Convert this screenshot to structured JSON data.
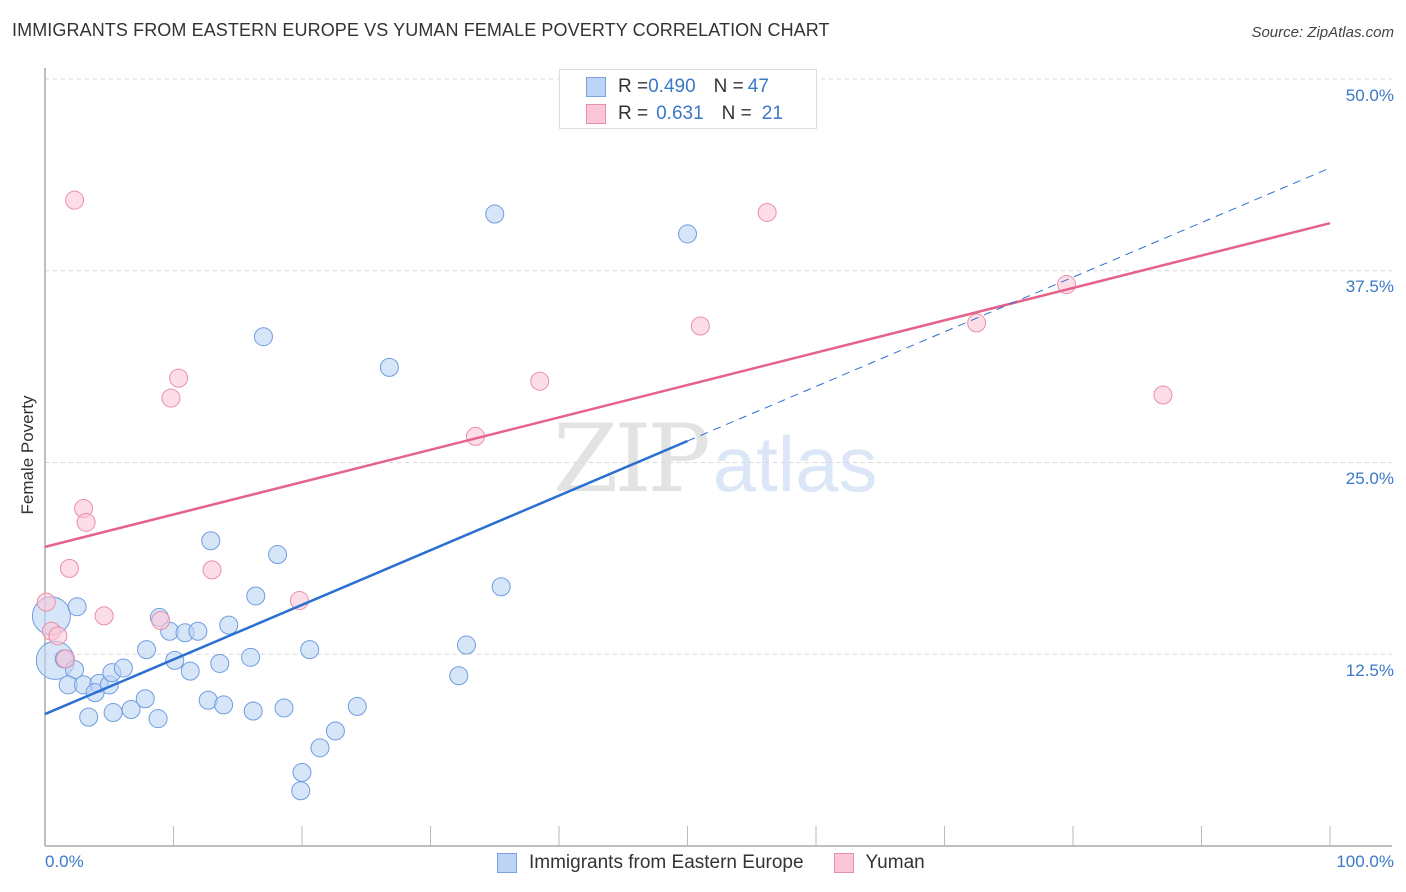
{
  "header": {
    "title": "IMMIGRANTS FROM EASTERN EUROPE VS YUMAN FEMALE POVERTY CORRELATION CHART",
    "source": "Source: ZipAtlas.com"
  },
  "legend_top": {
    "rows": [
      {
        "series": "Immigrants from Eastern Europe",
        "r_label": "R = ",
        "r_value": "0.490",
        "n_label": "N = ",
        "n_value": "47"
      },
      {
        "series": "Yuman",
        "r_label": "R = ",
        "r_value": "0.631",
        "n_label": "N = ",
        "n_value": "21"
      }
    ]
  },
  "legend_bottom": {
    "items": [
      {
        "label": "Immigrants from Eastern Europe"
      },
      {
        "label": "Yuman"
      }
    ]
  },
  "axes": {
    "ylabel": "Female Poverty",
    "yticks": [
      "50.0%",
      "37.5%",
      "25.0%",
      "12.5%"
    ],
    "xticks": [
      "0.0%",
      "100.0%"
    ]
  },
  "watermark": {
    "zip": "ZIP",
    "atlas": "atlas"
  },
  "colors": {
    "blue_fill": "#bcd4f5",
    "blue_stroke": "#6f9de0",
    "blue_line": "#2a6fd1",
    "pink_fill": "#fbc6d5",
    "pink_stroke": "#ea8fab",
    "pink_line": "#e5628b",
    "tick_text": "#3b78c7"
  },
  "chart_data": {
    "type": "scatter",
    "title": "IMMIGRANTS FROM EASTERN EUROPE VS YUMAN FEMALE POVERTY CORRELATION CHART",
    "xlabel": "",
    "ylabel": "Female Poverty",
    "xlim": [
      0,
      100
    ],
    "ylim": [
      0,
      50
    ],
    "x_ticks": [
      "0.0%",
      "100.0%"
    ],
    "y_ticks": [
      "12.5%",
      "25.0%",
      "37.5%",
      "50.0%"
    ],
    "grid": "horizontal dashed",
    "legend_position": "bottom",
    "series": [
      {
        "name": "Immigrants from Eastern Europe",
        "color": "#6f9de0",
        "R": 0.49,
        "N": 47,
        "trendline": {
          "x": [
            0,
            50
          ],
          "y": [
            8.6,
            26.4
          ],
          "dashed_extension": {
            "x": [
              50,
              100
            ],
            "y": [
              26.4,
              44.2
            ]
          }
        },
        "points": [
          {
            "x": 0.5,
            "y": 15.0,
            "size": "large"
          },
          {
            "x": 0.8,
            "y": 12.1,
            "size": "large"
          },
          {
            "x": 2.5,
            "y": 15.6
          },
          {
            "x": 1.5,
            "y": 12.2
          },
          {
            "x": 2.3,
            "y": 11.5
          },
          {
            "x": 1.8,
            "y": 10.5
          },
          {
            "x": 3.0,
            "y": 10.5
          },
          {
            "x": 4.2,
            "y": 10.6
          },
          {
            "x": 3.9,
            "y": 10.0
          },
          {
            "x": 5.0,
            "y": 10.5
          },
          {
            "x": 5.2,
            "y": 11.3
          },
          {
            "x": 6.1,
            "y": 11.6
          },
          {
            "x": 5.3,
            "y": 8.7
          },
          {
            "x": 6.7,
            "y": 8.9
          },
          {
            "x": 7.9,
            "y": 12.8
          },
          {
            "x": 8.9,
            "y": 14.9
          },
          {
            "x": 9.7,
            "y": 14.0
          },
          {
            "x": 10.1,
            "y": 12.1
          },
          {
            "x": 10.9,
            "y": 13.9
          },
          {
            "x": 11.9,
            "y": 14.0
          },
          {
            "x": 11.3,
            "y": 11.4
          },
          {
            "x": 7.8,
            "y": 9.6
          },
          {
            "x": 8.8,
            "y": 8.3
          },
          {
            "x": 12.7,
            "y": 9.5
          },
          {
            "x": 13.6,
            "y": 11.9
          },
          {
            "x": 13.9,
            "y": 9.2
          },
          {
            "x": 14.3,
            "y": 14.4
          },
          {
            "x": 12.9,
            "y": 19.9
          },
          {
            "x": 16.0,
            "y": 12.3
          },
          {
            "x": 16.2,
            "y": 8.8
          },
          {
            "x": 16.4,
            "y": 16.3
          },
          {
            "x": 17.0,
            "y": 33.2
          },
          {
            "x": 18.6,
            "y": 9.0
          },
          {
            "x": 18.1,
            "y": 19.0
          },
          {
            "x": 20.6,
            "y": 12.8
          },
          {
            "x": 21.4,
            "y": 6.4
          },
          {
            "x": 20.0,
            "y": 4.8
          },
          {
            "x": 19.9,
            "y": 3.6
          },
          {
            "x": 24.3,
            "y": 9.1
          },
          {
            "x": 22.6,
            "y": 7.5
          },
          {
            "x": 26.8,
            "y": 31.2
          },
          {
            "x": 32.2,
            "y": 11.1
          },
          {
            "x": 32.8,
            "y": 13.1
          },
          {
            "x": 35.0,
            "y": 41.2
          },
          {
            "x": 35.5,
            "y": 16.9
          },
          {
            "x": 50.0,
            "y": 39.9
          },
          {
            "x": 3.4,
            "y": 8.4
          }
        ]
      },
      {
        "name": "Yuman",
        "color": "#ea8fab",
        "R": 0.631,
        "N": 21,
        "trendline": {
          "x": [
            0,
            100
          ],
          "y": [
            19.5,
            40.6
          ]
        },
        "points": [
          {
            "x": 0.1,
            "y": 15.9
          },
          {
            "x": 0.5,
            "y": 14.0
          },
          {
            "x": 1.0,
            "y": 13.7
          },
          {
            "x": 1.6,
            "y": 12.2
          },
          {
            "x": 1.9,
            "y": 18.1
          },
          {
            "x": 2.3,
            "y": 42.1
          },
          {
            "x": 3.0,
            "y": 22.0
          },
          {
            "x": 3.2,
            "y": 21.1
          },
          {
            "x": 4.6,
            "y": 15.0
          },
          {
            "x": 9.0,
            "y": 14.7
          },
          {
            "x": 9.8,
            "y": 29.2
          },
          {
            "x": 10.4,
            "y": 30.5
          },
          {
            "x": 13.0,
            "y": 18.0
          },
          {
            "x": 19.8,
            "y": 16.0
          },
          {
            "x": 33.5,
            "y": 26.7
          },
          {
            "x": 38.5,
            "y": 30.3
          },
          {
            "x": 51.0,
            "y": 33.9
          },
          {
            "x": 56.2,
            "y": 41.3
          },
          {
            "x": 72.5,
            "y": 34.1
          },
          {
            "x": 79.5,
            "y": 36.6
          },
          {
            "x": 87.0,
            "y": 29.4
          }
        ]
      }
    ]
  }
}
